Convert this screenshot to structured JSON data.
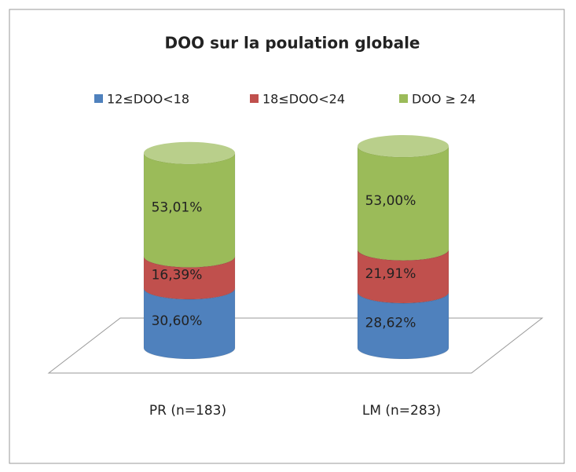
{
  "chart_data": {
    "type": "cylinder_stacked",
    "title": "DOO sur la poulation globale",
    "categories": [
      "PR (n=183)",
      "LM (n=283)"
    ],
    "series": [
      {
        "name": "12≤DOO<18",
        "color": "#4f81bd",
        "values": [
          30.6,
          28.62
        ],
        "value_labels": [
          "30,60%",
          "28,62%"
        ]
      },
      {
        "name": "18≤DOO<24",
        "color": "#c0504d",
        "values": [
          16.39,
          21.91
        ],
        "value_labels": [
          "16,39%",
          "21,91%"
        ]
      },
      {
        "name": "DOO ≥ 24",
        "color": "#9bbb59",
        "values": [
          53.01,
          53.0
        ],
        "value_labels": [
          "53,01%",
          "53,00%"
        ]
      }
    ],
    "legend": "top"
  }
}
